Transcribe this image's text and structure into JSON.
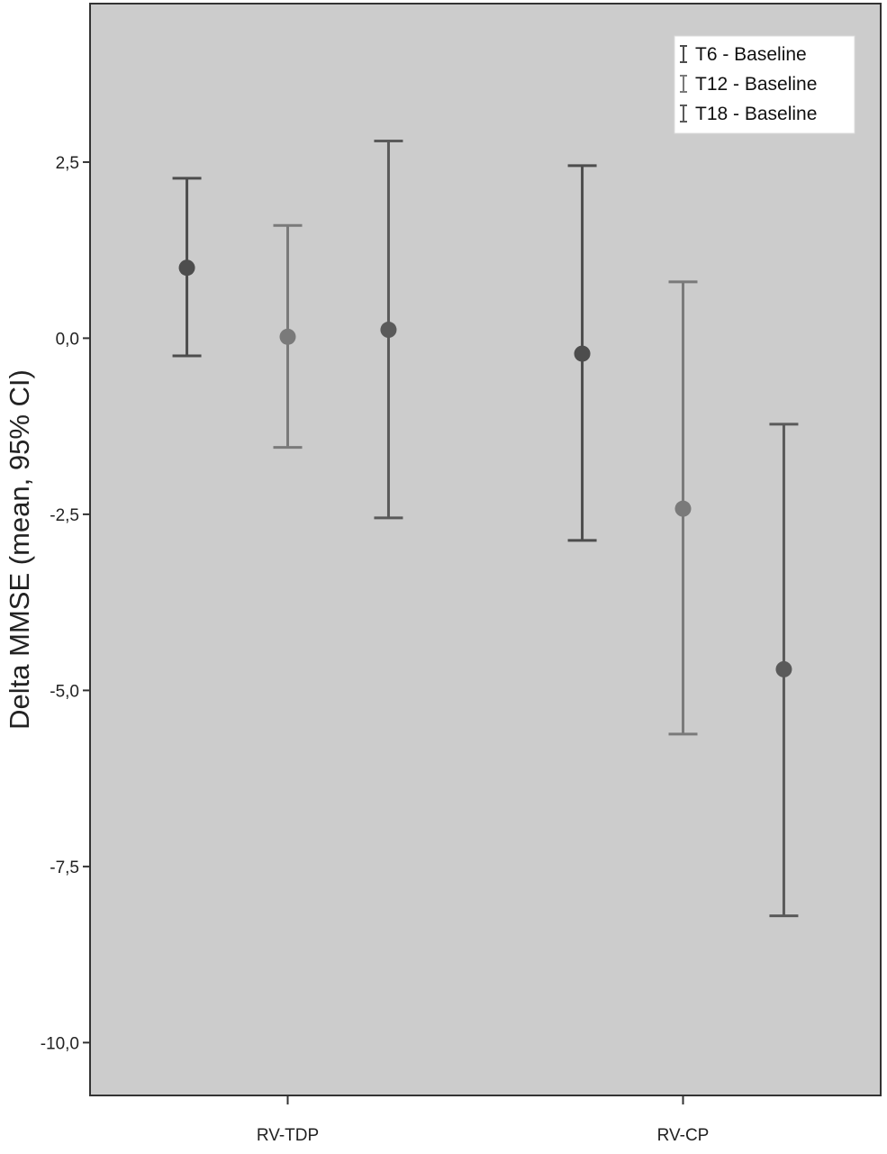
{
  "chart_data": {
    "type": "errorbar",
    "ylabel": "Delta MMSE (mean, 95% CI)",
    "xlabel": "",
    "categories": [
      "RV-TDP",
      "RV-CP"
    ],
    "ylim": [
      -10.75,
      4.75
    ],
    "yticks": [
      2.5,
      0.0,
      -2.5,
      -5.0,
      -7.5,
      -10.0
    ],
    "ytick_labels": [
      "2,5",
      "0,0",
      "-2,5",
      "-5,0",
      "-7,5",
      "-10,0"
    ],
    "grid": false,
    "legend_position": "top-right",
    "plot_background": "#cccccc",
    "series": [
      {
        "name": "T6 - Baseline",
        "color": "#4d4d4d",
        "mean": [
          1.0,
          -0.22
        ],
        "lower": [
          -0.25,
          -2.87
        ],
        "upper": [
          2.27,
          2.45
        ]
      },
      {
        "name": "T12 - Baseline",
        "color": "#7a7a7a",
        "mean": [
          0.02,
          -2.42
        ],
        "lower": [
          -1.55,
          -5.62
        ],
        "upper": [
          1.6,
          0.8
        ]
      },
      {
        "name": "T18 - Baseline",
        "color": "#5a5a5a",
        "mean": [
          0.12,
          -4.7
        ],
        "lower": [
          -2.55,
          -8.2
        ],
        "upper": [
          2.8,
          -1.22
        ]
      }
    ]
  }
}
